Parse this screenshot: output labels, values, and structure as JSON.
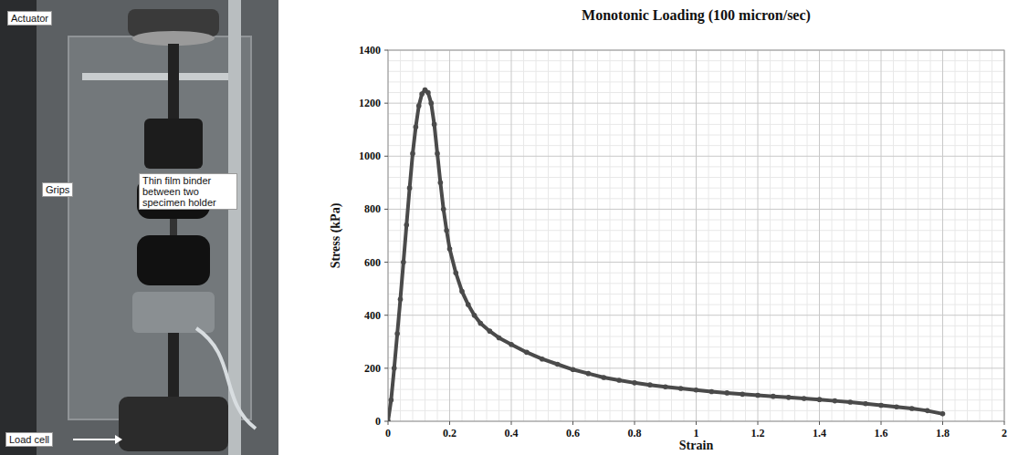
{
  "chart_data": {
    "type": "line",
    "marker": "circle",
    "color": "#4a4a4a",
    "grid": true,
    "title": "Monotonic Loading (100 micron/sec)",
    "x_label": "Strain",
    "y_label": "Stress (kPa)",
    "x": [
      0,
      0.01,
      0.02,
      0.03,
      0.04,
      0.05,
      0.06,
      0.07,
      0.08,
      0.09,
      0.1,
      0.11,
      0.12,
      0.13,
      0.14,
      0.15,
      0.16,
      0.17,
      0.18,
      0.19,
      0.2,
      0.22,
      0.24,
      0.26,
      0.28,
      0.3,
      0.33,
      0.36,
      0.4,
      0.45,
      0.5,
      0.55,
      0.6,
      0.65,
      0.7,
      0.75,
      0.8,
      0.85,
      0.9,
      0.95,
      1.0,
      1.05,
      1.1,
      1.15,
      1.2,
      1.25,
      1.3,
      1.35,
      1.4,
      1.45,
      1.5,
      1.55,
      1.6,
      1.65,
      1.7,
      1.75,
      1.8
    ],
    "values": [
      0,
      80,
      200,
      330,
      460,
      600,
      740,
      880,
      1010,
      1110,
      1190,
      1235,
      1250,
      1240,
      1200,
      1120,
      1010,
      900,
      800,
      720,
      650,
      560,
      490,
      440,
      400,
      370,
      340,
      315,
      290,
      260,
      235,
      215,
      195,
      180,
      165,
      155,
      145,
      137,
      130,
      124,
      118,
      112,
      107,
      102,
      98,
      94,
      90,
      86,
      82,
      77,
      72,
      66,
      60,
      54,
      48,
      40,
      28
    ],
    "xlim": [
      0,
      2
    ],
    "xticks": [
      0,
      0.2,
      0.4,
      0.6,
      0.8,
      1,
      1.2,
      1.4,
      1.6,
      1.8,
      2
    ],
    "ylim": [
      0,
      1400
    ],
    "yticks": [
      0,
      200,
      400,
      600,
      800,
      1000,
      1200,
      1400
    ]
  },
  "photo": {
    "labels": [
      "Actuator",
      "Grips",
      "Thin film binder between two specimen holder",
      "Load cell"
    ]
  }
}
